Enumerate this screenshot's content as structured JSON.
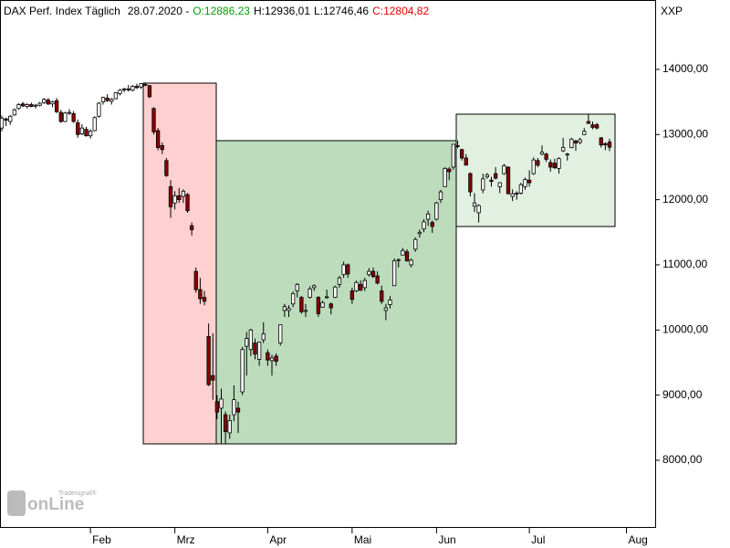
{
  "chart_data": {
    "type": "candlestick",
    "header": {
      "title": "DAX Perf. Index Täglich",
      "date": "28.07.2020 -",
      "open": "O:12886,23",
      "high": "H:12936,01",
      "low": "L:12746,46",
      "close": "C:12804,82"
    },
    "axis_label": "XXP",
    "logo": {
      "name": "onLine",
      "brand": "Tradesignal®"
    },
    "up_color": "#ffffff",
    "down_color": "#8b0000",
    "ylim": [
      6962,
      15065
    ],
    "yticks": [
      {
        "value": 8000,
        "label": "8000,00"
      },
      {
        "value": 9000,
        "label": "9000,00"
      },
      {
        "value": 10000,
        "label": "10000,00"
      },
      {
        "value": 11000,
        "label": "11000,00"
      },
      {
        "value": 12000,
        "label": "12000,00"
      },
      {
        "value": 13000,
        "label": "13000,00"
      },
      {
        "value": 14000,
        "label": "14000,00"
      }
    ],
    "next_month_label": "Aug",
    "categories": [
      null,
      null,
      null,
      null,
      null,
      null,
      null,
      null,
      null,
      null,
      null,
      null,
      null,
      null,
      null,
      null,
      null,
      null,
      null,
      null,
      null,
      "Feb",
      null,
      null,
      null,
      null,
      null,
      null,
      null,
      null,
      null,
      null,
      null,
      null,
      null,
      null,
      null,
      null,
      null,
      null,
      null,
      "Mrz",
      null,
      null,
      null,
      null,
      null,
      null,
      null,
      null,
      null,
      null,
      null,
      null,
      null,
      null,
      null,
      null,
      null,
      null,
      null,
      null,
      null,
      "Apr",
      null,
      null,
      null,
      null,
      null,
      null,
      null,
      null,
      null,
      null,
      null,
      null,
      null,
      null,
      null,
      null,
      null,
      null,
      null,
      "Mai",
      null,
      null,
      null,
      null,
      null,
      null,
      null,
      null,
      null,
      null,
      null,
      null,
      null,
      null,
      null,
      null,
      null,
      null,
      null,
      "Jun",
      null,
      null,
      null,
      null,
      null,
      null,
      null,
      null,
      null,
      null,
      null,
      null,
      null,
      null,
      null,
      null,
      null,
      null,
      null,
      null,
      null,
      "Jul",
      null,
      null,
      null,
      null,
      null,
      null,
      null,
      null,
      null,
      null,
      null,
      null,
      null,
      null,
      null,
      null,
      null,
      null,
      null
    ],
    "ohlc": [
      [
        13100,
        13290,
        13050,
        13250
      ],
      [
        13240,
        13260,
        13130,
        13220
      ],
      [
        13200,
        13300,
        13150,
        13280
      ],
      [
        13300,
        13400,
        13290,
        13380
      ],
      [
        13400,
        13480,
        13380,
        13460
      ],
      [
        13470,
        13500,
        13420,
        13440
      ],
      [
        13430,
        13480,
        13400,
        13460
      ],
      [
        13460,
        13490,
        13420,
        13430
      ],
      [
        13440,
        13470,
        13400,
        13450
      ],
      [
        13450,
        13500,
        13430,
        13480
      ],
      [
        13490,
        13560,
        13470,
        13540
      ],
      [
        13530,
        13560,
        13450,
        13470
      ],
      [
        13470,
        13520,
        13420,
        13500
      ],
      [
        13520,
        13560,
        13330,
        13350
      ],
      [
        13340,
        13380,
        13180,
        13200
      ],
      [
        13200,
        13350,
        13190,
        13330
      ],
      [
        13330,
        13390,
        13300,
        13340
      ],
      [
        13320,
        13360,
        13180,
        13200
      ],
      [
        13180,
        13230,
        12950,
        13000
      ],
      [
        13010,
        13160,
        12990,
        13100
      ],
      [
        13080,
        13120,
        12970,
        12980
      ],
      [
        12980,
        13080,
        12940,
        13050
      ],
      [
        13060,
        13280,
        13050,
        13260
      ],
      [
        13280,
        13500,
        13260,
        13480
      ],
      [
        13500,
        13580,
        13460,
        13570
      ],
      [
        13560,
        13620,
        13500,
        13520
      ],
      [
        13510,
        13560,
        13460,
        13540
      ],
      [
        13550,
        13650,
        13540,
        13640
      ],
      [
        13630,
        13700,
        13600,
        13680
      ],
      [
        13690,
        13720,
        13650,
        13700
      ],
      [
        13700,
        13760,
        13660,
        13690
      ],
      [
        13680,
        13760,
        13660,
        13740
      ],
      [
        13740,
        13780,
        13700,
        13720
      ],
      [
        13730,
        13790,
        13700,
        13780
      ],
      [
        13770,
        13800,
        13740,
        13760
      ],
      [
        13750,
        13760,
        13560,
        13580
      ],
      [
        13400,
        13420,
        13000,
        13040
      ],
      [
        13060,
        13100,
        12760,
        12800
      ],
      [
        12830,
        12880,
        12700,
        12770
      ],
      [
        12600,
        12640,
        12350,
        12370
      ],
      [
        12200,
        12300,
        11720,
        11890
      ],
      [
        11950,
        12130,
        11850,
        12060
      ],
      [
        12060,
        12180,
        11950,
        12000
      ],
      [
        12050,
        12160,
        11950,
        12130
      ],
      [
        12080,
        12100,
        11800,
        11830
      ],
      [
        11600,
        11650,
        11450,
        11540
      ],
      [
        10900,
        10960,
        10570,
        10620
      ],
      [
        10620,
        10800,
        10400,
        10480
      ],
      [
        10500,
        10600,
        10380,
        10440
      ],
      [
        9900,
        10100,
        9140,
        9160
      ],
      [
        9300,
        9950,
        8930,
        9230
      ],
      [
        8900,
        9000,
        8630,
        8740
      ],
      [
        8800,
        9100,
        8260,
        8940
      ],
      [
        8700,
        8750,
        8250,
        8440
      ],
      [
        8420,
        8700,
        8330,
        8610
      ],
      [
        8700,
        9150,
        8600,
        8930
      ],
      [
        8800,
        8900,
        8420,
        8740
      ],
      [
        9050,
        9740,
        9000,
        9700
      ],
      [
        9750,
        9970,
        9300,
        9870
      ],
      [
        9700,
        10020,
        9600,
        10000
      ],
      [
        9800,
        9870,
        9550,
        9630
      ],
      [
        9550,
        9820,
        9450,
        9815
      ],
      [
        9850,
        10120,
        9800,
        9940
      ],
      [
        9650,
        9700,
        9450,
        9540
      ],
      [
        9530,
        9620,
        9300,
        9570
      ],
      [
        9600,
        9640,
        9450,
        9520
      ],
      [
        9800,
        10080,
        9760,
        10080
      ],
      [
        10300,
        10400,
        10200,
        10360
      ],
      [
        10300,
        10380,
        10200,
        10330
      ],
      [
        10400,
        10590,
        10350,
        10560
      ],
      [
        10600,
        10720,
        10500,
        10700
      ],
      [
        10500,
        10520,
        10250,
        10280
      ],
      [
        10300,
        10400,
        10200,
        10300
      ],
      [
        10500,
        10670,
        10480,
        10630
      ],
      [
        10650,
        10700,
        10600,
        10680
      ],
      [
        10500,
        10520,
        10200,
        10250
      ],
      [
        10350,
        10450,
        10340,
        10420
      ],
      [
        10500,
        10620,
        10480,
        10510
      ],
      [
        10400,
        10420,
        10240,
        10340
      ],
      [
        10500,
        10680,
        10490,
        10660
      ],
      [
        10700,
        10830,
        10650,
        10800
      ],
      [
        10850,
        11050,
        10800,
        11000
      ],
      [
        11000,
        11020,
        10800,
        10860
      ],
      [
        10600,
        10650,
        10400,
        10470
      ],
      [
        10600,
        10760,
        10580,
        10730
      ],
      [
        10700,
        10760,
        10600,
        10610
      ],
      [
        10650,
        10800,
        10600,
        10760
      ],
      [
        10850,
        10950,
        10820,
        10900
      ],
      [
        10900,
        10960,
        10800,
        10820
      ],
      [
        10830,
        10900,
        10700,
        10720
      ],
      [
        10600,
        10680,
        10400,
        10440
      ],
      [
        10300,
        10400,
        10150,
        10340
      ],
      [
        10390,
        10520,
        10330,
        10460
      ],
      [
        10680,
        11100,
        10680,
        11060
      ],
      [
        11070,
        11100,
        10960,
        11080
      ],
      [
        11150,
        11260,
        11150,
        11220
      ],
      [
        11200,
        11240,
        11050,
        11060
      ],
      [
        11000,
        11100,
        10960,
        11070
      ],
      [
        11240,
        11420,
        11200,
        11390
      ],
      [
        11480,
        11540,
        11420,
        11500
      ],
      [
        11550,
        11700,
        11500,
        11660
      ],
      [
        11700,
        11830,
        11600,
        11780
      ],
      [
        11650,
        11680,
        11490,
        11590
      ],
      [
        11700,
        11970,
        11680,
        11950
      ],
      [
        12000,
        12150,
        11950,
        12120
      ],
      [
        12200,
        12500,
        12200,
        12480
      ],
      [
        12470,
        12500,
        12300,
        12430
      ],
      [
        12500,
        12850,
        12460,
        12850
      ],
      [
        12830,
        12910,
        12790,
        12820
      ],
      [
        12770,
        12780,
        12600,
        12640
      ],
      [
        12640,
        12700,
        12550,
        12530
      ],
      [
        12400,
        12420,
        12050,
        12120
      ],
      [
        11900,
        12100,
        11810,
        11950
      ],
      [
        11800,
        11930,
        11650,
        11910
      ],
      [
        12150,
        12400,
        12100,
        12320
      ],
      [
        12350,
        12410,
        12320,
        12380
      ],
      [
        12300,
        12350,
        12200,
        12280
      ],
      [
        12400,
        12500,
        12310,
        12330
      ],
      [
        12200,
        12270,
        12100,
        12260
      ],
      [
        12400,
        12550,
        12380,
        12520
      ],
      [
        12500,
        12510,
        12090,
        12090
      ],
      [
        12050,
        12160,
        11980,
        12090
      ],
      [
        12100,
        12130,
        12000,
        12090
      ],
      [
        12100,
        12260,
        12080,
        12230
      ],
      [
        12200,
        12340,
        12150,
        12310
      ],
      [
        12300,
        12450,
        12200,
        12260
      ],
      [
        12400,
        12650,
        12380,
        12610
      ],
      [
        12600,
        12640,
        12500,
        12530
      ],
      [
        12700,
        12830,
        12680,
        12730
      ],
      [
        12700,
        12720,
        12580,
        12620
      ],
      [
        12570,
        12620,
        12430,
        12500
      ],
      [
        12560,
        12630,
        12470,
        12490
      ],
      [
        12480,
        12650,
        12400,
        12630
      ],
      [
        12750,
        12950,
        12730,
        12800
      ],
      [
        12700,
        12720,
        12600,
        12700
      ],
      [
        12800,
        12950,
        12790,
        12930
      ],
      [
        12900,
        12920,
        12750,
        12870
      ],
      [
        12880,
        12950,
        12850,
        12920
      ],
      [
        13000,
        13100,
        12990,
        13050
      ],
      [
        13200,
        13310,
        13170,
        13170
      ],
      [
        13150,
        13200,
        13080,
        13110
      ],
      [
        13150,
        13180,
        13080,
        13100
      ],
      [
        12950,
        12960,
        12800,
        12840
      ],
      [
        12860,
        12880,
        12760,
        12840
      ],
      [
        12886,
        12936,
        12746,
        12805
      ]
    ]
  }
}
